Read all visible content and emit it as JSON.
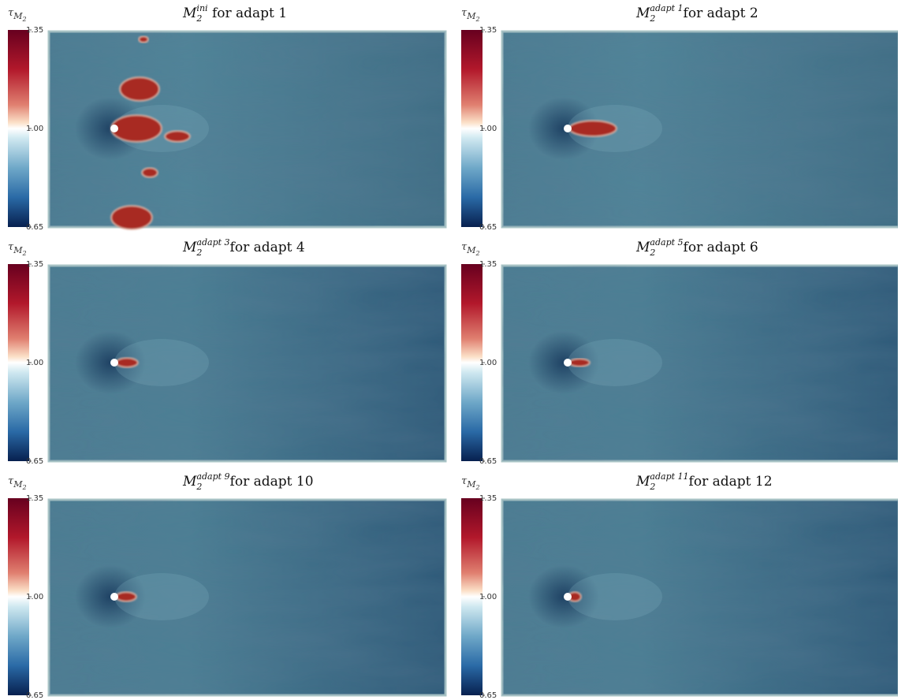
{
  "colorbar": {
    "label": "τ",
    "label_sub": "M",
    "label_subsub": "2",
    "ticks": [
      "1.35",
      "1.00",
      "0.65"
    ]
  },
  "panels": [
    {
      "symbol": "M",
      "subscript": "2",
      "superscript": "ini",
      "caption": " for adapt 1"
    },
    {
      "symbol": "M",
      "subscript": "2",
      "superscript": "adapt 1",
      "caption": "for adapt 2"
    },
    {
      "symbol": "M",
      "subscript": "2",
      "superscript": "adapt 3",
      "caption": "for adapt 4"
    },
    {
      "symbol": "M",
      "subscript": "2",
      "superscript": "adapt 5",
      "caption": "for adapt 6"
    },
    {
      "symbol": "M",
      "subscript": "2",
      "superscript": "adapt 9",
      "caption": "for adapt 10"
    },
    {
      "symbol": "M",
      "subscript": "2",
      "superscript": "adapt 11",
      "caption": "for adapt 12"
    }
  ]
}
